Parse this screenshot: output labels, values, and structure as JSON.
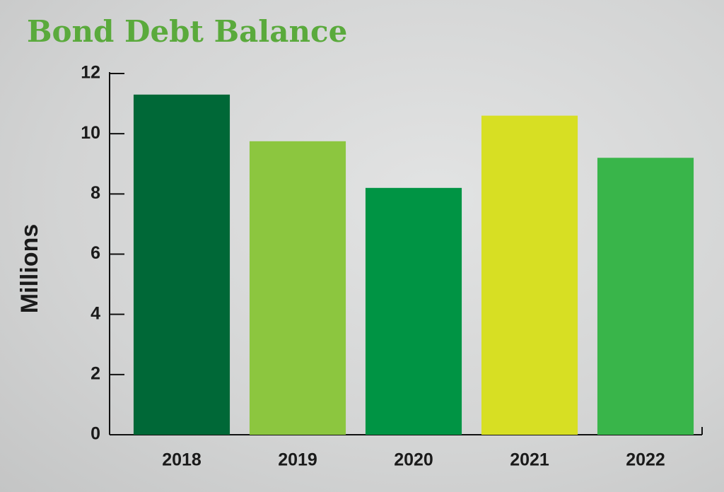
{
  "chart_data": {
    "type": "bar",
    "title": "Bond Debt Balance",
    "y_label": "Millions",
    "categories": [
      "2018",
      "2019",
      "2020",
      "2021",
      "2022"
    ],
    "values": [
      11.3,
      9.75,
      8.2,
      10.6,
      9.2
    ],
    "colors": [
      "#006837",
      "#8cc63f",
      "#009444",
      "#d7df23",
      "#39b54a"
    ],
    "ylim": [
      0,
      12
    ],
    "yticks": [
      0,
      2,
      4,
      6,
      8,
      10,
      12
    ],
    "grid": false
  }
}
